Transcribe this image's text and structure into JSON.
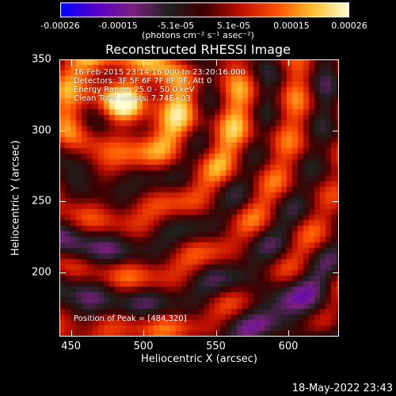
{
  "colorbar": {
    "ticks": [
      "-0.00026",
      "-0.00015",
      "-5.1e-05",
      "5.1e-05",
      "0.00015",
      "0.00026"
    ],
    "unit": "(photons cm⁻² s⁻¹ asec⁻²)",
    "colors": [
      "#0000ff",
      "#5a00c8",
      "#7a2080",
      "#202020",
      "#400000",
      "#c01000",
      "#ff5000",
      "#ffc030",
      "#ffffd0"
    ]
  },
  "chart_data": {
    "type": "heatmap",
    "title": "Reconstructed RHESSI Image",
    "xlabel": "Heliocentric X (arcsec)",
    "ylabel": "Heliocentric Y (arcsec)",
    "xlim": [
      442,
      635
    ],
    "ylim": [
      155,
      350
    ],
    "x_ticks": [
      "450",
      "500",
      "550",
      "600"
    ],
    "y_ticks": [
      "200",
      "250",
      "300",
      "350"
    ],
    "colorbar_range": [
      -0.00026,
      0.00026
    ],
    "peak": [
      484,
      320
    ],
    "annotations": [
      "16-Feb-2015 23:14:16.000 to 23:20:16.000",
      "Detectors: 3F 5F 6F 7F 8F 9F, Att 0",
      "Energy Range: 25.0 - 50.0 keV",
      "Clean     Total counts: 7.74E+03"
    ],
    "peak_label": "Position of Peak = [484,320]"
  },
  "footer_date": "18-May-2022 23:43"
}
